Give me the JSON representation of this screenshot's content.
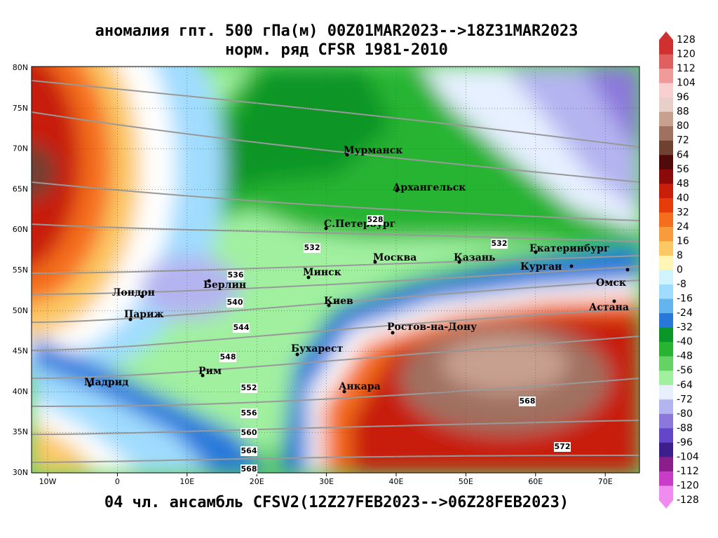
{
  "title": "аномалия гпт. 500 гПа(м) 00Z01MAR2023-->18Z31MAR2023",
  "subtitle": "норм. ряд CFSR 1981-2010",
  "footer": "04 чл. ансамбль CFSV2(12Z27FEB2023-->06Z28FEB2023)",
  "lon_labels": [
    "10W",
    "0",
    "10E",
    "20E",
    "30E",
    "40E",
    "50E",
    "60E",
    "70E"
  ],
  "lat_labels": [
    "80N",
    "75N",
    "70N",
    "65N",
    "60N",
    "55N",
    "50N",
    "45N",
    "40N",
    "35N",
    "30N"
  ],
  "cities": [
    "Мурманск",
    "Архангельск",
    "С.Петербург",
    "Москва",
    "Казань",
    "Екатеринбург",
    "Курган",
    "Омск",
    "Астана",
    "Минск",
    "Киев",
    "Берлин",
    "Лондон",
    "Париж",
    "Бухарест",
    "Ростов-на-Дону",
    "Анкара",
    "Рим",
    "Мадрид"
  ],
  "contour_labels": [
    528,
    532,
    532,
    536,
    540,
    544,
    548,
    552,
    556,
    560,
    564,
    568,
    568,
    572
  ],
  "colorbar_labels": [
    128,
    120,
    112,
    104,
    96,
    88,
    80,
    72,
    64,
    56,
    48,
    40,
    32,
    24,
    16,
    8,
    0,
    -8,
    -16,
    -24,
    -32,
    -40,
    -48,
    -56,
    -64,
    -72,
    -80,
    -88,
    -96,
    -104,
    -112,
    -120,
    -128
  ]
}
